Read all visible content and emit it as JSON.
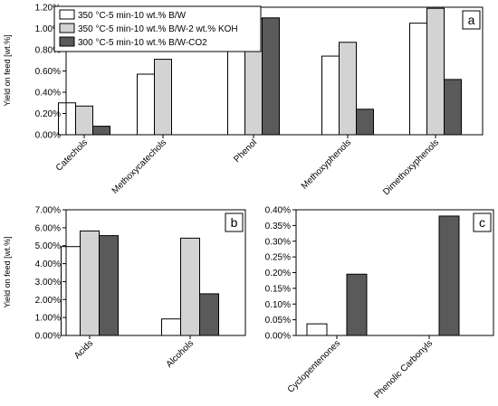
{
  "legend": [
    {
      "label": "350 °C-5 min-10 wt.% B/W",
      "color": "#ffffff"
    },
    {
      "label": "350 °C-5 min-10 wt.% B/W-2 wt.% KOH",
      "color": "#d3d3d3"
    },
    {
      "label": "300 °C-5 min-10 wt.% B/W-CO2",
      "color": "#5a5a5a"
    }
  ],
  "chart_data": [
    {
      "panel": "a",
      "type": "bar",
      "ylabel": "Yield on feed [wt.%]",
      "ylim": [
        0,
        1.2
      ],
      "yticks": [
        "0.00%",
        "0.20%",
        "0.40%",
        "0.60%",
        "0.80%",
        "1.00%",
        "1.20%"
      ],
      "categories": [
        "Catechols",
        "Methoxycatechols",
        "Phenol",
        "Methoxyphenols",
        "Dimethoxyphenols"
      ],
      "series": [
        {
          "name": "350 °C-5 min-10 wt.% B/W",
          "values": [
            0.3,
            0.57,
            1.0,
            0.74,
            1.05
          ]
        },
        {
          "name": "350 °C-5 min-10 wt.% B/W-2 wt.% KOH",
          "values": [
            0.27,
            0.71,
            1.09,
            0.87,
            1.19
          ]
        },
        {
          "name": "300 °C-5 min-10 wt.% B/W-CO2",
          "values": [
            0.08,
            null,
            1.1,
            0.24,
            0.52
          ]
        }
      ]
    },
    {
      "panel": "b",
      "type": "bar",
      "ylabel": "Yield on feed [wt.%]",
      "ylim": [
        0,
        7
      ],
      "yticks": [
        "0.00%",
        "1.00%",
        "2.00%",
        "3.00%",
        "4.00%",
        "5.00%",
        "6.00%",
        "7.00%"
      ],
      "categories": [
        "Acids",
        "Alcohols"
      ],
      "series": [
        {
          "name": "350 °C-5 min-10 wt.% B/W",
          "values": [
            4.95,
            0.92
          ]
        },
        {
          "name": "350 °C-5 min-10 wt.% B/W-2 wt.% KOH",
          "values": [
            5.82,
            5.42
          ]
        },
        {
          "name": "300 °C-5 min-10 wt.% B/W-CO2",
          "values": [
            5.56,
            2.32
          ]
        }
      ]
    },
    {
      "panel": "c",
      "type": "bar",
      "ylabel": "",
      "ylim": [
        0,
        0.4
      ],
      "yticks": [
        "0.00%",
        "0.05%",
        "0.10%",
        "0.15%",
        "0.20%",
        "0.25%",
        "0.30%",
        "0.35%",
        "0.40%"
      ],
      "categories": [
        "Cyclopentenones",
        "Phenolic Carbonyls"
      ],
      "series": [
        {
          "name": "350 °C-5 min-10 wt.% B/W",
          "values": [
            0.037,
            null
          ]
        },
        {
          "name": "350 °C-5 min-10 wt.% B/W-2 wt.% KOH",
          "values": [
            null,
            null
          ]
        },
        {
          "name": "300 °C-5 min-10 wt.% B/W-CO2",
          "values": [
            0.195,
            0.38
          ]
        }
      ]
    }
  ]
}
